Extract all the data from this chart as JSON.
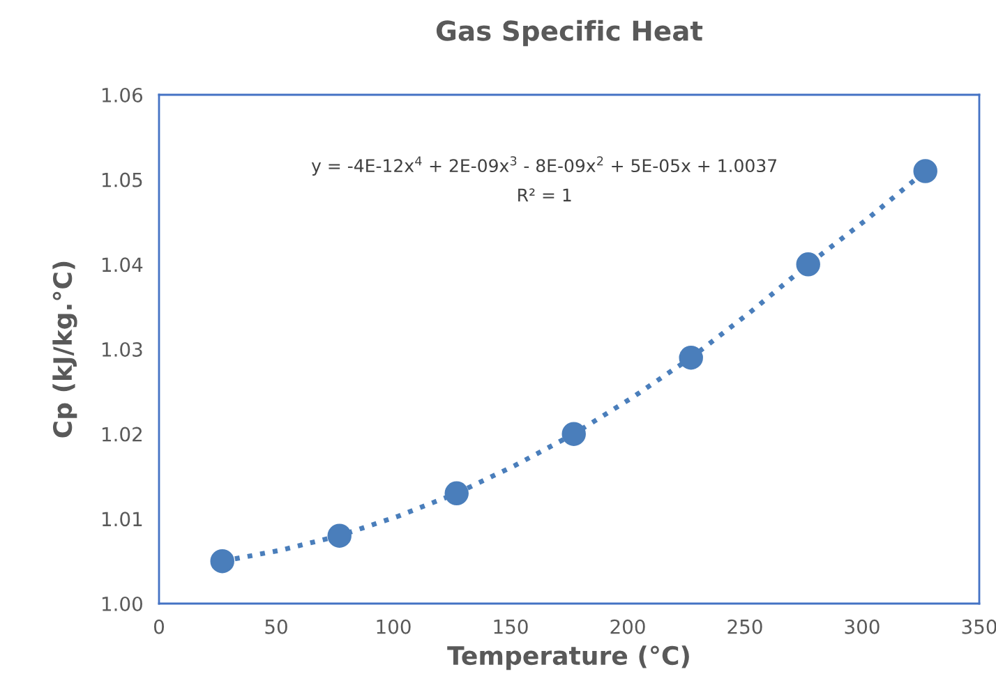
{
  "chart_data": {
    "type": "scatter",
    "title": "Gas Specific Heat",
    "xlabel": "Temperature (°C)",
    "ylabel": "Cp (kJ/kg.°C)",
    "x": [
      27,
      77,
      127,
      177,
      227,
      277,
      327
    ],
    "series": [
      {
        "color": "#4a7ebb",
        "marker": "circle",
        "values": [
          1.005,
          1.008,
          1.013,
          1.02,
          1.029,
          1.04,
          1.051
        ]
      },
      {
        "type": "line",
        "color": "#4a7ebb",
        "line_style": "dotted",
        "marker": "none",
        "x": [
          27,
          52,
          77,
          102,
          127,
          152,
          177,
          202,
          227,
          252,
          277,
          302,
          327
        ],
        "values": [
          1.005,
          1.0063,
          1.008,
          1.0103,
          1.013,
          1.0163,
          1.02,
          1.0243,
          1.029,
          1.0343,
          1.04,
          1.0453,
          1.051
        ]
      }
    ],
    "annotations": [
      "y = -4E-12x$^{4}$ + 2E-09x$^{3}$ - 8E-09x$^{2}$ + 5E-05x + 1.0037",
      "R² = 1"
    ],
    "xlim": [
      0,
      350
    ],
    "xticks": [
      0,
      50,
      100,
      150,
      200,
      250,
      300,
      350
    ],
    "ylim": [
      1.0,
      1.06
    ],
    "yticks": [
      {
        "value": 1.0,
        "label": "1.00"
      },
      {
        "value": 1.01,
        "label": "1.01"
      },
      {
        "value": 1.02,
        "label": "1.02"
      },
      {
        "value": 1.03,
        "label": "1.03"
      },
      {
        "value": 1.04,
        "label": "1.04"
      },
      {
        "value": 1.05,
        "label": "1.05"
      },
      {
        "value": 1.06,
        "label": "1.06"
      }
    ],
    "grid": false,
    "legend": false
  }
}
